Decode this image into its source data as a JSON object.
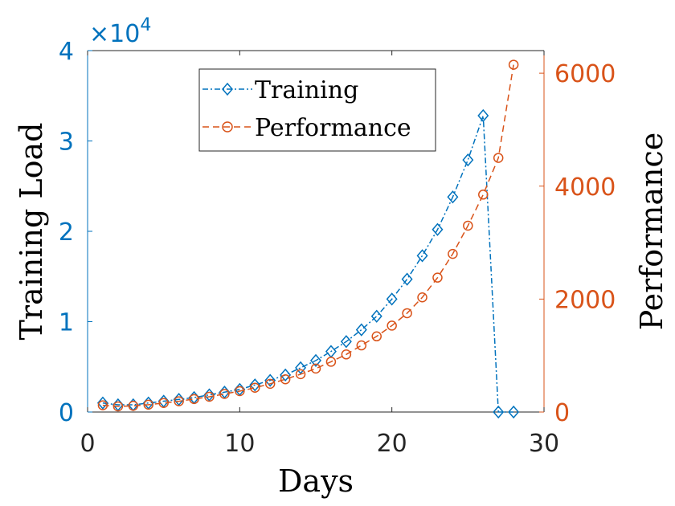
{
  "chart_data": {
    "type": "line",
    "xlabel": "Days",
    "ylabel_left": "Training Load",
    "ylabel_right": "Performance",
    "xlim": [
      0,
      30
    ],
    "ylim_left": [
      0,
      40000
    ],
    "ylim_right": [
      0,
      6400
    ],
    "x_ticks": [
      "0",
      "10",
      "20",
      "30"
    ],
    "left_ticks": [
      "0",
      "1",
      "2",
      "3",
      "4"
    ],
    "left_exponent": {
      "base": "×10",
      "power": "4"
    },
    "right_ticks": [
      "0",
      "2000",
      "4000",
      "6000"
    ],
    "colors": {
      "left": "#0072BD",
      "right": "#D95319",
      "x_axis": "#262626"
    },
    "legend_position": "top",
    "series": [
      {
        "name": "Training",
        "axis": "left",
        "style": "dash-dot",
        "marker": "diamond",
        "color": "#0072BD",
        "x": [
          1,
          2,
          3,
          4,
          5,
          6,
          7,
          8,
          9,
          10,
          11,
          12,
          13,
          14,
          15,
          16,
          17,
          18,
          19,
          20,
          21,
          22,
          23,
          24,
          25,
          26,
          27,
          28
        ],
        "y": [
          1000,
          800,
          800,
          1000,
          1200,
          1400,
          1600,
          1900,
          2200,
          2500,
          3000,
          3500,
          4100,
          4900,
          5700,
          6700,
          7800,
          9100,
          10600,
          12500,
          14700,
          17300,
          20200,
          23800,
          27900,
          32800,
          0,
          0
        ]
      },
      {
        "name": "Performance",
        "axis": "right",
        "style": "dashed",
        "marker": "circle",
        "color": "#D95319",
        "x": [
          1,
          2,
          3,
          4,
          5,
          6,
          7,
          8,
          9,
          10,
          11,
          12,
          13,
          14,
          15,
          16,
          17,
          18,
          19,
          20,
          21,
          22,
          23,
          24,
          25,
          26,
          27,
          28
        ],
        "y": [
          120,
          100,
          110,
          130,
          160,
          190,
          230,
          270,
          320,
          370,
          430,
          500,
          580,
          670,
          770,
          890,
          1020,
          1180,
          1340,
          1530,
          1750,
          2030,
          2380,
          2800,
          3300,
          3850,
          4500,
          6150
        ]
      }
    ]
  }
}
